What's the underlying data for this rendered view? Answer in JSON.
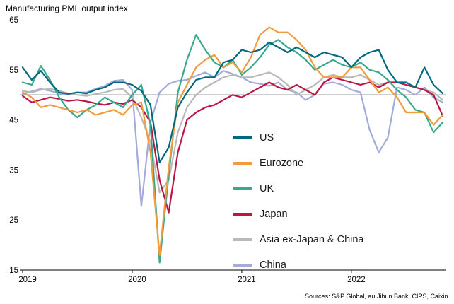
{
  "title": "Manufacturing PMI, output index",
  "sources": "Sources: S&P Global, au Jibun Bank, CIPS, Caixin.",
  "chart_data": {
    "type": "line",
    "x_unit": "month",
    "x_start": "2019-01",
    "x_end": "2022-11",
    "x_tick_labels": [
      "2019",
      "2020",
      "2021",
      "2022"
    ],
    "y_ticks": [
      15,
      25,
      35,
      45,
      55,
      65
    ],
    "ylim": [
      15,
      65
    ],
    "reference_line": 50,
    "grid": false,
    "legend_position": "center-right",
    "series": [
      {
        "name": "US",
        "color": "#00687f",
        "values": [
          55.5,
          53.0,
          54.8,
          52.5,
          50.5,
          50.2,
          50.5,
          50.3,
          51.0,
          51.5,
          52.5,
          52.5,
          52.0,
          50.8,
          48.0,
          36.5,
          39.5,
          47.5,
          50.5,
          53.0,
          53.5,
          53.5,
          56.5,
          57.0,
          59.0,
          58.5,
          59.0,
          60.5,
          59.5,
          58.5,
          59.5,
          58.5,
          57.5,
          58.5,
          58.0,
          57.5,
          55.5,
          57.5,
          58.5,
          59.0,
          55.0,
          52.5,
          52.5,
          51.5,
          55.5,
          52.0,
          50.3
        ]
      },
      {
        "name": "Eurozone",
        "color": "#f09c3c",
        "values": [
          50.5,
          49.5,
          47.5,
          48.0,
          47.5,
          47.0,
          46.5,
          47.0,
          46.0,
          46.5,
          47.0,
          46.0,
          48.0,
          48.5,
          38.5,
          18.0,
          35.5,
          48.5,
          52.0,
          55.5,
          57.0,
          58.0,
          55.5,
          56.5,
          54.5,
          57.5,
          62.0,
          63.5,
          62.5,
          62.5,
          61.0,
          59.0,
          55.5,
          53.5,
          53.5,
          53.5,
          55.5,
          55.5,
          53.0,
          50.5,
          51.5,
          49.5,
          46.5,
          46.5,
          46.5,
          44.0,
          46.0
        ]
      },
      {
        "name": "UK",
        "color": "#38a98c",
        "values": [
          52.5,
          52.0,
          55.8,
          53.0,
          49.5,
          47.0,
          45.5,
          47.0,
          48.0,
          49.5,
          48.5,
          47.5,
          50.0,
          52.0,
          44.0,
          16.5,
          34.0,
          50.5,
          57.0,
          62.0,
          59.0,
          56.5,
          55.5,
          57.0,
          54.0,
          55.5,
          57.5,
          60.0,
          61.0,
          59.5,
          58.5,
          57.0,
          55.0,
          56.0,
          57.0,
          56.0,
          55.5,
          56.5,
          55.0,
          54.5,
          53.0,
          51.0,
          49.5,
          47.0,
          46.5,
          42.5,
          44.5
        ]
      },
      {
        "name": "Japan",
        "color": "#bc1644",
        "values": [
          49.8,
          48.5,
          49.0,
          49.5,
          49.2,
          48.8,
          49.0,
          48.7,
          48.3,
          48.0,
          48.5,
          48.2,
          49.0,
          47.5,
          44.5,
          33.0,
          26.5,
          38.5,
          45.0,
          46.5,
          47.5,
          48.0,
          49.0,
          50.0,
          49.5,
          50.5,
          51.5,
          52.5,
          51.5,
          51.0,
          52.0,
          51.0,
          50.0,
          52.5,
          53.5,
          53.0,
          52.5,
          52.0,
          52.5,
          51.5,
          52.5,
          52.5,
          52.0,
          51.5,
          51.0,
          50.0,
          45.8
        ]
      },
      {
        "name": "Asia ex-Japan & China",
        "color": "#b9b9b9",
        "values": [
          50.8,
          50.5,
          51.0,
          51.2,
          50.8,
          50.3,
          50.0,
          49.8,
          50.2,
          50.5,
          51.0,
          51.2,
          49.5,
          45.5,
          40.5,
          30.5,
          33.0,
          42.5,
          47.5,
          50.0,
          51.5,
          52.5,
          53.5,
          54.0,
          53.5,
          53.5,
          54.0,
          54.5,
          53.5,
          52.0,
          50.0,
          51.0,
          52.0,
          53.5,
          54.0,
          53.5,
          53.5,
          54.0,
          53.0,
          52.0,
          52.5,
          52.5,
          52.0,
          51.5,
          51.0,
          50.5,
          49.0
        ]
      },
      {
        "name": "China",
        "color": "#a3abdb",
        "values": [
          50.2,
          50.7,
          51.2,
          50.8,
          50.3,
          50.0,
          50.5,
          50.5,
          51.2,
          51.8,
          52.8,
          53.0,
          51.0,
          27.8,
          44.5,
          50.5,
          52.2,
          52.8,
          53.0,
          53.8,
          54.5,
          53.5,
          54.8,
          54.2,
          53.5,
          52.5,
          52.2,
          51.8,
          52.5,
          51.0,
          50.5,
          49.0,
          50.0,
          52.2,
          52.5,
          52.0,
          51.0,
          50.5,
          43.0,
          38.5,
          41.5,
          51.5,
          51.0,
          50.0,
          51.5,
          49.5,
          48.5
        ]
      }
    ]
  }
}
